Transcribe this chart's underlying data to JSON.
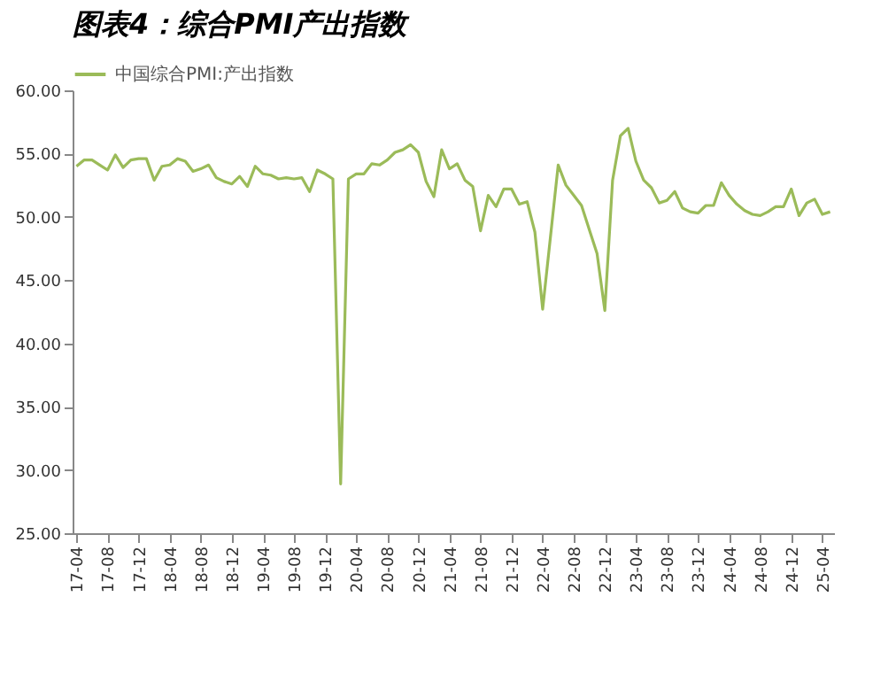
{
  "chart_data": {
    "type": "line",
    "title": "图表4：综合PMI产出指数",
    "categories": [
      "17-04",
      null,
      null,
      null,
      "17-08",
      null,
      null,
      null,
      "17-12",
      null,
      null,
      null,
      "18-04",
      null,
      null,
      null,
      "18-08",
      null,
      null,
      null,
      "18-12",
      null,
      null,
      null,
      "19-04",
      null,
      null,
      null,
      "19-08",
      null,
      null,
      null,
      "19-12",
      null,
      null,
      null,
      "20-04",
      null,
      null,
      null,
      "20-08",
      null,
      null,
      null,
      "20-12",
      null,
      null,
      null,
      "21-04",
      null,
      null,
      null,
      "21-08",
      null,
      null,
      null,
      "21-12",
      null,
      null,
      null,
      "22-04",
      null,
      null,
      null,
      "22-08",
      null,
      null,
      null,
      "22-12",
      null,
      null,
      null,
      "23-04",
      null,
      null,
      null,
      "23-08",
      null,
      null,
      null,
      "23-12",
      null,
      null,
      null,
      "24-04",
      null,
      null,
      null,
      "24-08",
      null,
      null,
      null,
      "24-12",
      null,
      null,
      null,
      "25-04",
      null
    ],
    "series": [
      {
        "name": "中国综合PMI:产出指数",
        "color": "#9bbb59",
        "values": [
          54.0,
          54.5,
          54.5,
          54.1,
          53.7,
          54.9,
          53.9,
          54.5,
          54.6,
          54.6,
          52.9,
          54.0,
          54.1,
          54.6,
          54.4,
          53.6,
          53.8,
          54.1,
          53.1,
          52.8,
          52.6,
          53.2,
          52.4,
          54.0,
          53.4,
          53.3,
          53.0,
          53.1,
          53.0,
          53.1,
          52.0,
          53.7,
          53.4,
          53.0,
          28.9,
          53.0,
          53.4,
          53.4,
          54.2,
          54.1,
          54.5,
          55.1,
          55.3,
          55.7,
          55.1,
          52.8,
          51.6,
          55.3,
          53.8,
          54.2,
          52.9,
          52.4,
          48.9,
          51.7,
          50.8,
          52.2,
          52.2,
          51.0,
          51.2,
          48.8,
          42.7,
          48.4,
          54.1,
          52.5,
          51.7,
          50.9,
          49.0,
          47.1,
          42.6,
          52.9,
          56.4,
          57.0,
          54.4,
          52.9,
          52.3,
          51.1,
          51.3,
          52.0,
          50.7,
          50.4,
          50.3,
          50.9,
          50.9,
          52.7,
          51.7,
          51.0,
          50.5,
          50.2,
          50.1,
          50.4,
          50.8,
          50.8,
          52.2,
          50.1,
          51.1,
          51.4,
          50.2,
          50.4
        ]
      }
    ],
    "ylim": [
      25,
      60
    ],
    "yticks": [
      {
        "value": 25,
        "label": "25.00"
      },
      {
        "value": 30,
        "label": "30.00"
      },
      {
        "value": 35,
        "label": "35.00"
      },
      {
        "value": 40,
        "label": "40.00"
      },
      {
        "value": 45,
        "label": "45.00"
      },
      {
        "value": 50,
        "label": "50.00"
      },
      {
        "value": 55,
        "label": "55.00"
      },
      {
        "value": 60,
        "label": "60.00"
      }
    ],
    "grid": false,
    "legend": "top",
    "marker": "none",
    "line_style": "solid"
  }
}
